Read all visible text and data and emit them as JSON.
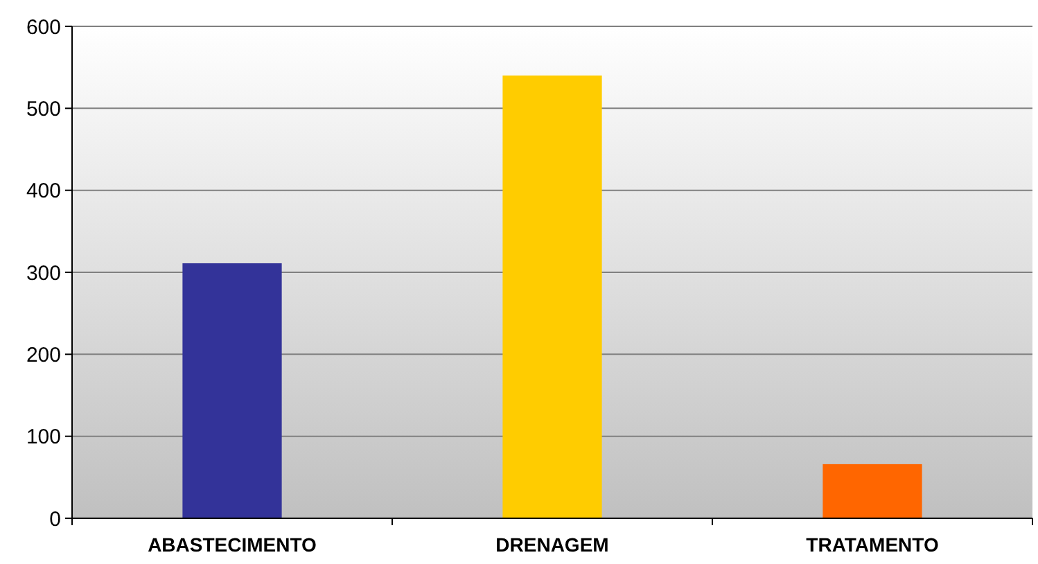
{
  "chart_data": {
    "type": "bar",
    "categories": [
      "ABASTECIMENTO",
      "DRENAGEM",
      "TRATAMENTO"
    ],
    "values": [
      311,
      540,
      66
    ],
    "colors": [
      "#333399",
      "#ffcc00",
      "#ff6600"
    ],
    "ylim": [
      0,
      600
    ],
    "yticks": [
      0,
      100,
      200,
      300,
      400,
      500,
      600
    ],
    "grid": "y"
  }
}
